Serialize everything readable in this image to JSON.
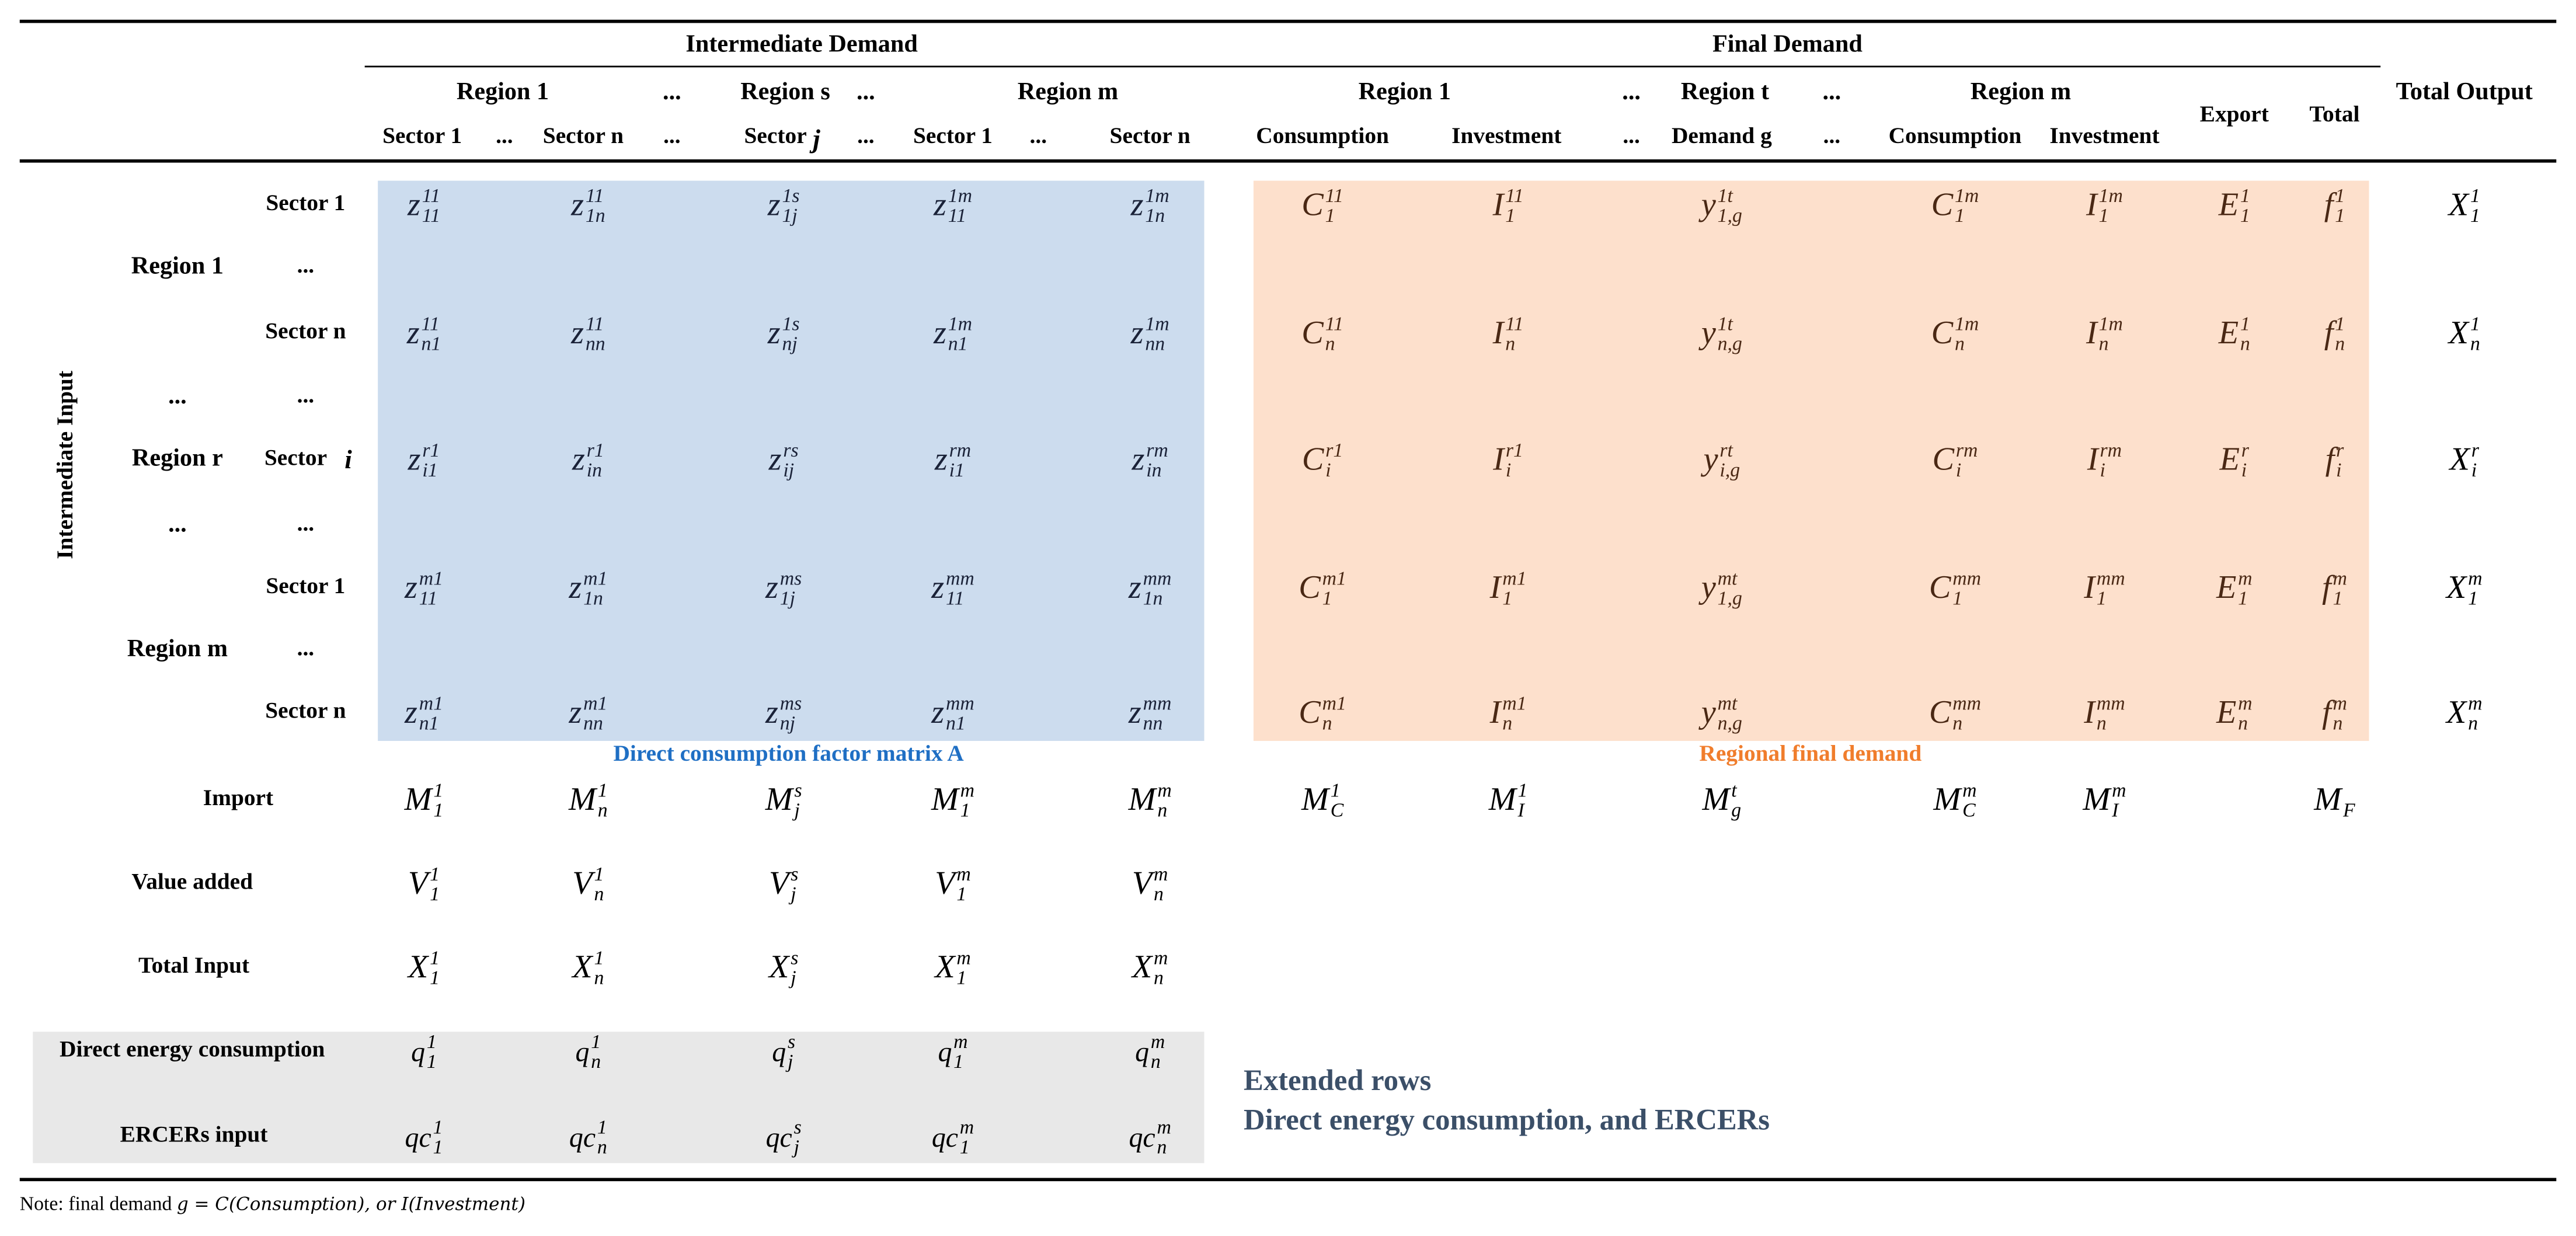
{
  "header": {
    "intermediate_demand": "Intermediate Demand",
    "final_demand": "Final Demand",
    "total_output": "Total Output",
    "regions_intermediate": [
      "Region 1",
      "...",
      "Region s",
      "...",
      "Region m"
    ],
    "regions_final": [
      "Region 1",
      "...",
      "Region t",
      "...",
      "Region m"
    ],
    "export": "Export",
    "total": "Total",
    "sectors_intermediate": [
      "Sector 1",
      "...",
      "Sector n",
      "...",
      "Sector",
      "...",
      "Sector 1",
      "...",
      "Sector n"
    ],
    "sector_j_var": "j",
    "final_columns": [
      "Consumption",
      "Investment",
      "...",
      "Demand g",
      "...",
      "Consumption",
      "Investment"
    ]
  },
  "rows": {
    "intermediate_input": "Intermediate Input",
    "region_labels": [
      "Region 1",
      "...",
      "Region r",
      "...",
      "Region m"
    ],
    "sector_labels": [
      "Sector 1",
      "...",
      "Sector n",
      "...",
      "Sector",
      "...",
      "Sector 1",
      "...",
      "Sector n"
    ],
    "sector_i_var": "i",
    "import": "Import",
    "value_added": "Value added",
    "total_input": "Total Input",
    "direct_energy": "Direct energy consumption",
    "ercers_input": "ERCERs input"
  },
  "matrix_rows": [
    {
      "z": [
        [
          "z",
          "11",
          "11"
        ],
        [
          "z",
          "11",
          "1n"
        ],
        [
          "z",
          "1s",
          "1j"
        ],
        [
          "z",
          "1m",
          "11"
        ],
        [
          "z",
          "1m",
          "1n"
        ]
      ],
      "f": [
        [
          "C",
          "11",
          "1"
        ],
        [
          "I",
          "11",
          "1"
        ],
        [
          "y",
          "1t",
          "1,g"
        ],
        [
          "C",
          "1m",
          "1"
        ],
        [
          "I",
          "1m",
          "1"
        ],
        [
          "E",
          "1",
          "1"
        ],
        [
          "f",
          "1",
          "1"
        ]
      ],
      "x": [
        "X",
        "1",
        "1"
      ]
    },
    {
      "z": [
        [
          "z",
          "11",
          "n1"
        ],
        [
          "z",
          "11",
          "nn"
        ],
        [
          "z",
          "1s",
          "nj"
        ],
        [
          "z",
          "1m",
          "n1"
        ],
        [
          "z",
          "1m",
          "nn"
        ]
      ],
      "f": [
        [
          "C",
          "11",
          "n"
        ],
        [
          "I",
          "11",
          "n"
        ],
        [
          "y",
          "1t",
          "n,g"
        ],
        [
          "C",
          "1m",
          "n"
        ],
        [
          "I",
          "1m",
          "n"
        ],
        [
          "E",
          "1",
          "n"
        ],
        [
          "f",
          "1",
          "n"
        ]
      ],
      "x": [
        "X",
        "1",
        "n"
      ]
    },
    {
      "z": [
        [
          "z",
          "r1",
          "i1"
        ],
        [
          "z",
          "r1",
          "in"
        ],
        [
          "z",
          "rs",
          "ij"
        ],
        [
          "z",
          "rm",
          "i1"
        ],
        [
          "z",
          "rm",
          "in"
        ]
      ],
      "f": [
        [
          "C",
          "r1",
          "i"
        ],
        [
          "I",
          "r1",
          "i"
        ],
        [
          "y",
          "rt",
          "i,g"
        ],
        [
          "C",
          "rm",
          "i"
        ],
        [
          "I",
          "rm",
          "i"
        ],
        [
          "E",
          "r",
          "i"
        ],
        [
          "f",
          "r",
          "i"
        ]
      ],
      "x": [
        "X",
        "r",
        "i"
      ]
    },
    {
      "z": [
        [
          "z",
          "m1",
          "11"
        ],
        [
          "z",
          "m1",
          "1n"
        ],
        [
          "z",
          "ms",
          "1j"
        ],
        [
          "z",
          "mm",
          "11"
        ],
        [
          "z",
          "mm",
          "1n"
        ]
      ],
      "f": [
        [
          "C",
          "m1",
          "1"
        ],
        [
          "I",
          "m1",
          "1"
        ],
        [
          "y",
          "mt",
          "1,g"
        ],
        [
          "C",
          "mm",
          "1"
        ],
        [
          "I",
          "mm",
          "1"
        ],
        [
          "E",
          "m",
          "1"
        ],
        [
          "f",
          "m",
          "1"
        ]
      ],
      "x": [
        "X",
        "m",
        "1"
      ]
    },
    {
      "z": [
        [
          "z",
          "m1",
          "n1"
        ],
        [
          "z",
          "m1",
          "nn"
        ],
        [
          "z",
          "ms",
          "nj"
        ],
        [
          "z",
          "mm",
          "n1"
        ],
        [
          "z",
          "mm",
          "nn"
        ]
      ],
      "f": [
        [
          "C",
          "m1",
          "n"
        ],
        [
          "I",
          "m1",
          "n"
        ],
        [
          "y",
          "mt",
          "n,g"
        ],
        [
          "C",
          "mm",
          "n"
        ],
        [
          "I",
          "mm",
          "n"
        ],
        [
          "E",
          "m",
          "n"
        ],
        [
          "f",
          "m",
          "n"
        ]
      ],
      "x": [
        "X",
        "m",
        "n"
      ]
    }
  ],
  "import_row": {
    "z": [
      [
        "M",
        "1",
        "1"
      ],
      [
        "M",
        "1",
        "n"
      ],
      [
        "M",
        "s",
        "j"
      ],
      [
        "M",
        "m",
        "1"
      ],
      [
        "M",
        "m",
        "n"
      ]
    ],
    "f": [
      [
        "M",
        "1",
        "C"
      ],
      [
        "M",
        "1",
        "I"
      ],
      [
        "M",
        "t",
        "g"
      ],
      [
        "M",
        "m",
        "C"
      ],
      [
        "M",
        "m",
        "I"
      ],
      null,
      [
        "M",
        "",
        "F"
      ]
    ]
  },
  "value_added_row": [
    [
      "V",
      "1",
      "1"
    ],
    [
      "V",
      "1",
      "n"
    ],
    [
      "V",
      "s",
      "j"
    ],
    [
      "V",
      "m",
      "1"
    ],
    [
      "V",
      "m",
      "n"
    ]
  ],
  "total_input_row": [
    [
      "X",
      "1",
      "1"
    ],
    [
      "X",
      "1",
      "n"
    ],
    [
      "X",
      "s",
      "j"
    ],
    [
      "X",
      "m",
      "1"
    ],
    [
      "X",
      "m",
      "n"
    ]
  ],
  "energy_row": [
    [
      "q",
      "1",
      "1"
    ],
    [
      "q",
      "1",
      "n"
    ],
    [
      "q",
      "s",
      "j"
    ],
    [
      "q",
      "m",
      "1"
    ],
    [
      "q",
      "m",
      "n"
    ]
  ],
  "ercers_row": [
    [
      "qc",
      "1",
      "1"
    ],
    [
      "qc",
      "1",
      "n"
    ],
    [
      "qc",
      "s",
      "j"
    ],
    [
      "qc",
      "m",
      "1"
    ],
    [
      "qc",
      "m",
      "n"
    ]
  ],
  "captions": {
    "matrix_a": "Direct consumption factor matrix A",
    "final_demand": "Regional final demand",
    "extended_1": "Extended rows",
    "extended_2": "Direct energy consumption, and ERCERs"
  },
  "note": {
    "prefix": "Note: final demand ",
    "formula": "g = C(Consumption), or I(Investment)"
  },
  "colors": {
    "matrix_fill": "#ccdcee",
    "final_fill": "#fde0cc",
    "extended_fill": "#e8e8e8",
    "matrix_caption": "#1f6fc4",
    "final_caption": "#f07d2c",
    "extended_text": "#3b4f68"
  }
}
